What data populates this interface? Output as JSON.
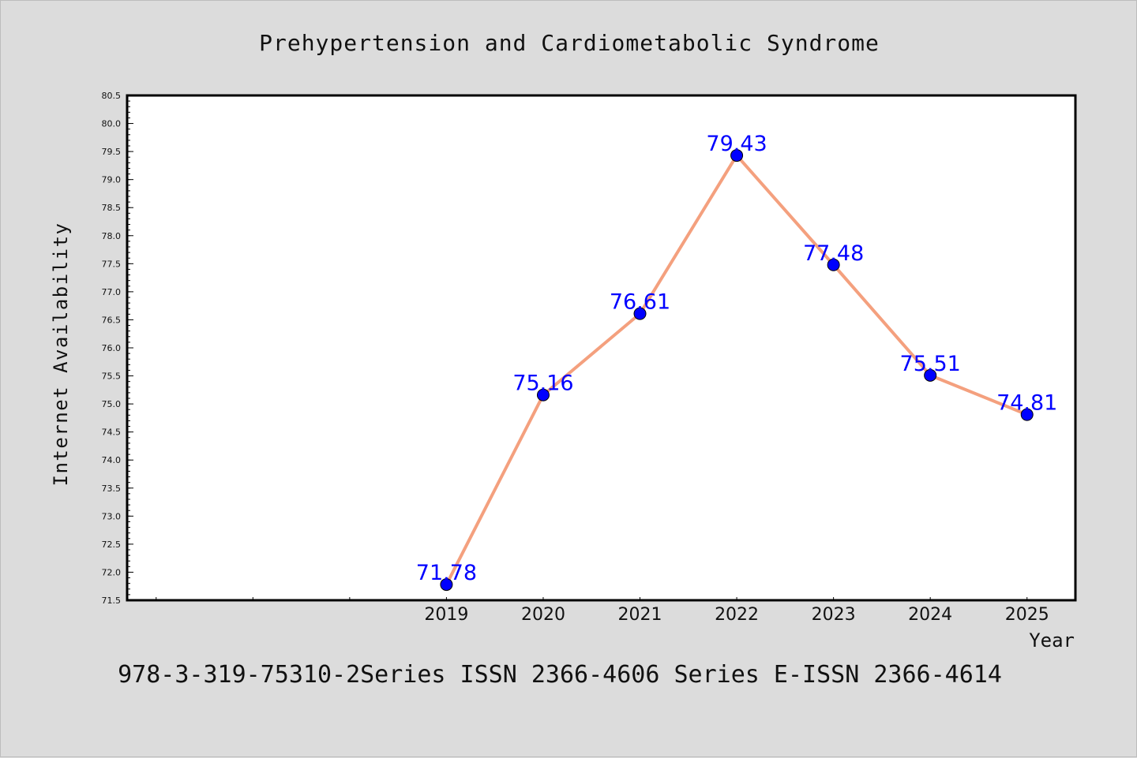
{
  "chart_data": {
    "type": "line",
    "title": "Prehypertension and Cardiometabolic Syndrome",
    "xlabel": "Year",
    "ylabel": "Internet Availability",
    "footer": "978-3-319-75310-2Series ISSN 2366-4606 Series E-ISSN 2366-4614",
    "categories": [
      "2019",
      "2020",
      "2021",
      "2022",
      "2023",
      "2024",
      "2025"
    ],
    "x": [
      2019,
      2020,
      2021,
      2022,
      2023,
      2024,
      2025
    ],
    "values": [
      71.78,
      75.16,
      76.61,
      79.43,
      77.48,
      75.51,
      74.81
    ],
    "data_labels": [
      "71.78",
      "75.16",
      "76.61",
      "79.43",
      "77.48",
      "75.51",
      "74.81"
    ],
    "xlim": [
      2015.7,
      2025.5
    ],
    "ylim": [
      71.5,
      80.5
    ],
    "yticks": [
      "71.5",
      "72.0",
      "72.5",
      "73.0",
      "73.5",
      "74.0",
      "74.5",
      "75.0",
      "75.5",
      "76.0",
      "76.5",
      "77.0",
      "77.5",
      "78.0",
      "78.5",
      "79.0",
      "79.5",
      "80.0",
      "80.5"
    ],
    "grid": false,
    "legend": "none",
    "colors": {
      "line": "#f4a07e",
      "marker": "#0000ff",
      "data_label": "#0000ff",
      "background": "#dcdcdc",
      "plot_background": "#ffffff"
    }
  }
}
